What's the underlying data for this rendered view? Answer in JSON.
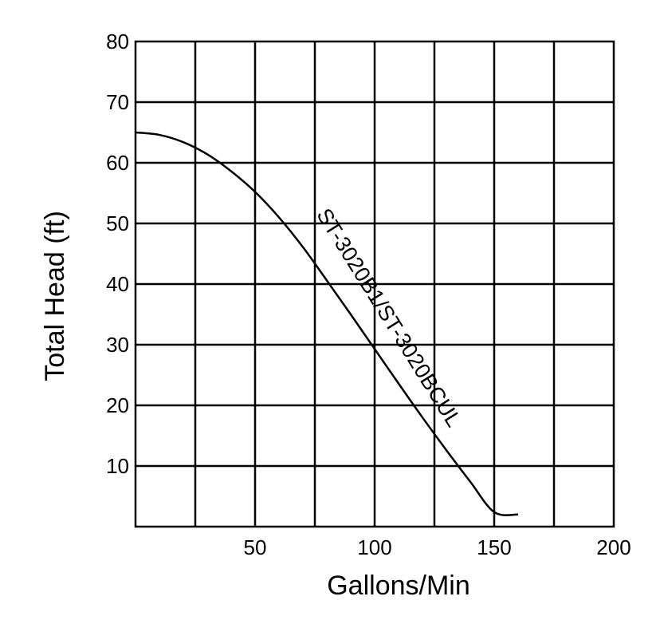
{
  "chart_data": {
    "type": "line",
    "xlabel": "Gallons/Min",
    "ylabel": "Total Head (ft)",
    "xlim": [
      0,
      200
    ],
    "ylim": [
      0,
      80
    ],
    "x_ticks": [
      {
        "value": 50,
        "label": "50"
      },
      {
        "value": 100,
        "label": "100"
      },
      {
        "value": 150,
        "label": "150"
      },
      {
        "value": 200,
        "label": "200"
      }
    ],
    "y_ticks": [
      {
        "value": 10,
        "label": "10"
      },
      {
        "value": 20,
        "label": "20"
      },
      {
        "value": 30,
        "label": "30"
      },
      {
        "value": 40,
        "label": "40"
      },
      {
        "value": 50,
        "label": "50"
      },
      {
        "value": 60,
        "label": "60"
      },
      {
        "value": 70,
        "label": "70"
      },
      {
        "value": 80,
        "label": "80"
      }
    ],
    "x_grid": [
      25,
      50,
      75,
      100,
      125,
      150,
      175
    ],
    "y_grid": [
      10,
      20,
      30,
      40,
      50,
      60,
      70
    ],
    "grid": true,
    "series": [
      {
        "name": "ST-3020B1/ST-3020BCUL",
        "color": "#000000",
        "x": [
          0,
          10,
          20,
          30,
          40,
          50,
          60,
          70,
          80,
          90,
          100,
          110,
          120,
          130,
          140,
          150,
          160
        ],
        "y": [
          65,
          64.6,
          63.4,
          61.4,
          58.6,
          55.2,
          51,
          46.1,
          40.6,
          35,
          29.3,
          23.6,
          18,
          12.6,
          7.4,
          2.4,
          2
        ]
      }
    ]
  }
}
